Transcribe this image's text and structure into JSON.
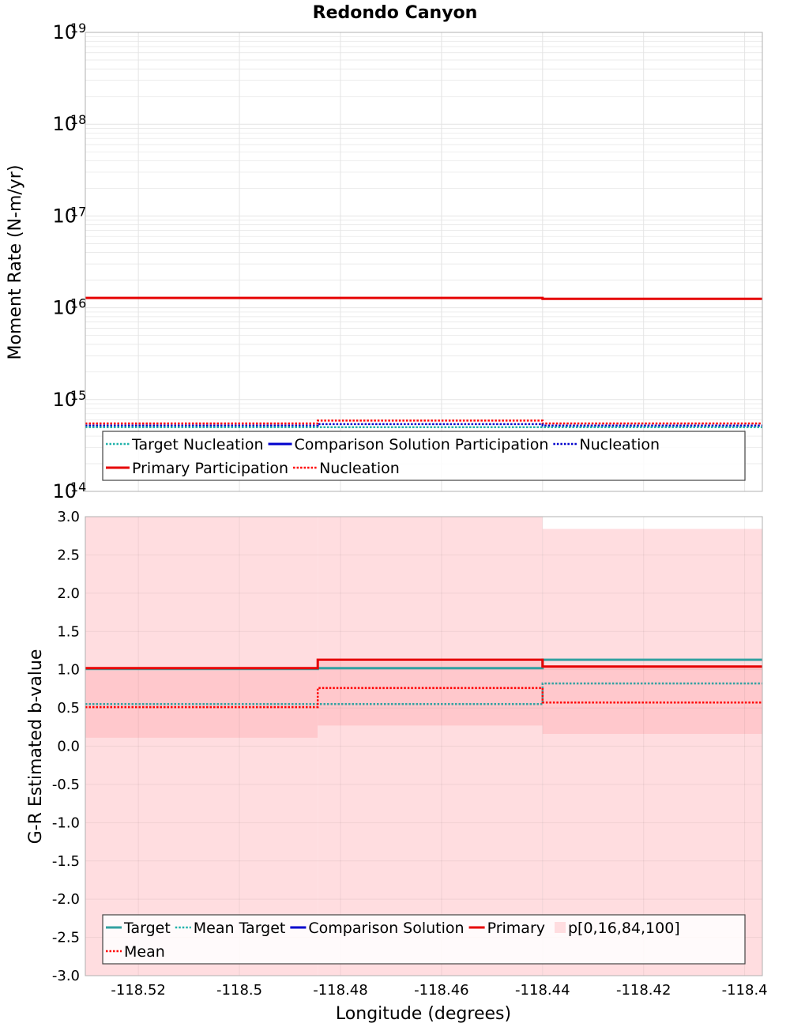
{
  "title": "Redondo Canyon",
  "colors": {
    "target": "#33a1a1",
    "mean_target": "#20b2aa",
    "comparison": "#0000cc",
    "primary": "#e60000",
    "mean_red": "#ff0000",
    "band_outer": "#ffdde0",
    "band_inner": "#ffc8cc",
    "grid": "#e4e4e4",
    "frame": "#b0b0b0"
  },
  "chart_data": [
    {
      "type": "line",
      "name": "moment-rate",
      "ylabel": "Moment Rate (N-m/yr)",
      "xlabel": "",
      "yscale": "log",
      "ylim": [
        100000000000000.0,
        1e+19
      ],
      "xlim": [
        -118.5305,
        -118.3965
      ],
      "xticks": [
        "-118.52",
        "-118.5",
        "-118.48",
        "-118.46",
        "-118.44",
        "-118.42",
        "-118.4"
      ],
      "yticks": [
        {
          "base": "10",
          "exp": "19"
        },
        {
          "base": "10",
          "exp": "18"
        },
        {
          "base": "10",
          "exp": "17"
        },
        {
          "base": "10",
          "exp": "16"
        },
        {
          "base": "10",
          "exp": "15"
        },
        {
          "base": "10",
          "exp": "14"
        }
      ],
      "x_edges": [
        -118.5305,
        -118.4845,
        -118.44,
        -118.3965
      ],
      "series": [
        {
          "key": "primary_participation",
          "style": "solid",
          "color": "primary",
          "values": [
            1.28e+16,
            1.28e+16,
            1.25e+16
          ]
        },
        {
          "key": "primary_nucleation",
          "style": "dotted",
          "color": "mean_red",
          "values": [
            550000000000000.0,
            590000000000000.0,
            550000000000000.0
          ]
        },
        {
          "key": "comparison_nucleation",
          "style": "dotted",
          "color": "comparison",
          "values": [
            520000000000000.0,
            540000000000000.0,
            520000000000000.0
          ]
        },
        {
          "key": "target_nucleation",
          "style": "dotted",
          "color": "mean_target",
          "values": [
            500000000000000.0,
            500000000000000.0,
            500000000000000.0
          ]
        }
      ],
      "legend": {
        "placement": "bottom",
        "entries": [
          {
            "label": "Target Nucleation",
            "style": "dotted",
            "color": "mean_target"
          },
          {
            "label": "Comparison Solution Participation",
            "style": "solid",
            "color": "comparison"
          },
          {
            "label": "Nucleation",
            "style": "dotted",
            "color": "comparison"
          },
          {
            "label": "Primary Participation",
            "style": "solid",
            "color": "primary"
          },
          {
            "label": "Nucleation",
            "style": "dotted",
            "color": "mean_red"
          }
        ]
      }
    },
    {
      "type": "line",
      "name": "b-value",
      "ylabel": "G-R Estimated b-value",
      "xlabel": "Longitude (degrees)",
      "ylim": [
        -3.0,
        3.0
      ],
      "xlim": [
        -118.5305,
        -118.3965
      ],
      "xticks": [
        "-118.52",
        "-118.5",
        "-118.48",
        "-118.46",
        "-118.44",
        "-118.42",
        "-118.4"
      ],
      "yticks": [
        "3.0",
        "2.5",
        "2.0",
        "1.5",
        "1.0",
        "0.5",
        "0.0",
        "-0.5",
        "-1.0",
        "-1.5",
        "-2.0",
        "-2.5",
        "-3.0"
      ],
      "x_edges": [
        -118.5305,
        -118.4845,
        -118.44,
        -118.3965
      ],
      "bands": {
        "p0": [
          -3.0,
          -3.0,
          -3.0
        ],
        "p16": [
          0.11,
          0.27,
          0.16
        ],
        "p84": [
          0.99,
          1.1,
          1.03
        ],
        "p100": [
          3.0,
          3.0,
          2.84
        ]
      },
      "series": [
        {
          "key": "target",
          "style": "solid",
          "color": "target",
          "values": [
            1.01,
            1.02,
            1.13
          ]
        },
        {
          "key": "mean_target",
          "style": "dotted",
          "color": "target",
          "values": [
            0.55,
            0.55,
            0.82
          ]
        },
        {
          "key": "primary",
          "style": "solid",
          "color": "primary",
          "values": [
            1.02,
            1.13,
            1.04
          ]
        },
        {
          "key": "mean",
          "style": "dotted",
          "color": "mean_red",
          "values": [
            0.51,
            0.76,
            0.57
          ]
        }
      ],
      "legend": {
        "placement": "bottom",
        "entries": [
          {
            "label": "Target",
            "style": "solid",
            "color": "target"
          },
          {
            "label": "Mean Target",
            "style": "dotted",
            "color": "mean_target"
          },
          {
            "label": "Comparison Solution",
            "style": "solid",
            "color": "comparison"
          },
          {
            "label": "Primary",
            "style": "solid",
            "color": "primary"
          },
          {
            "label": "p[0,16,84,100]",
            "style": "box",
            "color": "band_outer"
          },
          {
            "label": "Mean",
            "style": "dotted",
            "color": "mean_red"
          }
        ]
      }
    }
  ]
}
